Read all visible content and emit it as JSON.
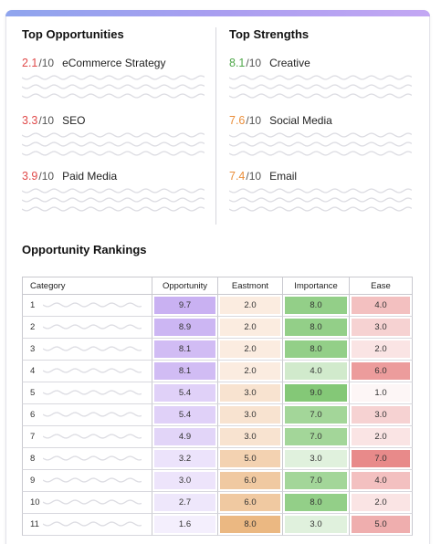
{
  "opportunities": {
    "title": "Top Opportunities",
    "items": [
      {
        "score": "2.1",
        "denom": "/10",
        "label": "eCommerce Strategy"
      },
      {
        "score": "3.3",
        "denom": "/10",
        "label": "SEO"
      },
      {
        "score": "3.9",
        "denom": "/10",
        "label": "Paid Media"
      }
    ]
  },
  "strengths": {
    "title": "Top Strengths",
    "items": [
      {
        "score": "8.1",
        "denom": "/10",
        "label": "Creative"
      },
      {
        "score": "7.6",
        "denom": "/10",
        "label": "Social Media"
      },
      {
        "score": "7.4",
        "denom": "/10",
        "label": "Email"
      }
    ]
  },
  "rankings": {
    "title": "Opportunity Rankings",
    "headers": [
      "Category",
      "Opportunity",
      "Eastmont",
      "Importance",
      "Ease"
    ],
    "rows": [
      {
        "rank": "1",
        "opportunity": "9.7",
        "eastmont": "2.0",
        "importance": "8.0",
        "ease": "4.0"
      },
      {
        "rank": "2",
        "opportunity": "8.9",
        "eastmont": "2.0",
        "importance": "8.0",
        "ease": "3.0"
      },
      {
        "rank": "3",
        "opportunity": "8.1",
        "eastmont": "2.0",
        "importance": "8.0",
        "ease": "2.0"
      },
      {
        "rank": "4",
        "opportunity": "8.1",
        "eastmont": "2.0",
        "importance": "4.0",
        "ease": "6.0"
      },
      {
        "rank": "5",
        "opportunity": "5.4",
        "eastmont": "3.0",
        "importance": "9.0",
        "ease": "1.0"
      },
      {
        "rank": "6",
        "opportunity": "5.4",
        "eastmont": "3.0",
        "importance": "7.0",
        "ease": "3.0"
      },
      {
        "rank": "7",
        "opportunity": "4.9",
        "eastmont": "3.0",
        "importance": "7.0",
        "ease": "2.0"
      },
      {
        "rank": "8",
        "opportunity": "3.2",
        "eastmont": "5.0",
        "importance": "3.0",
        "ease": "7.0"
      },
      {
        "rank": "9",
        "opportunity": "3.0",
        "eastmont": "6.0",
        "importance": "7.0",
        "ease": "4.0"
      },
      {
        "rank": "10",
        "opportunity": "2.7",
        "eastmont": "6.0",
        "importance": "8.0",
        "ease": "2.0"
      },
      {
        "rank": "11",
        "opportunity": "1.6",
        "eastmont": "8.0",
        "importance": "3.0",
        "ease": "5.0"
      }
    ]
  },
  "colors": {
    "accent_gradient": [
      "#8fa5ee",
      "#c3a7f3"
    ],
    "low_score": "#e04a4a",
    "high_score": "#4fa84a",
    "mid_score": "#ea8e3a"
  }
}
